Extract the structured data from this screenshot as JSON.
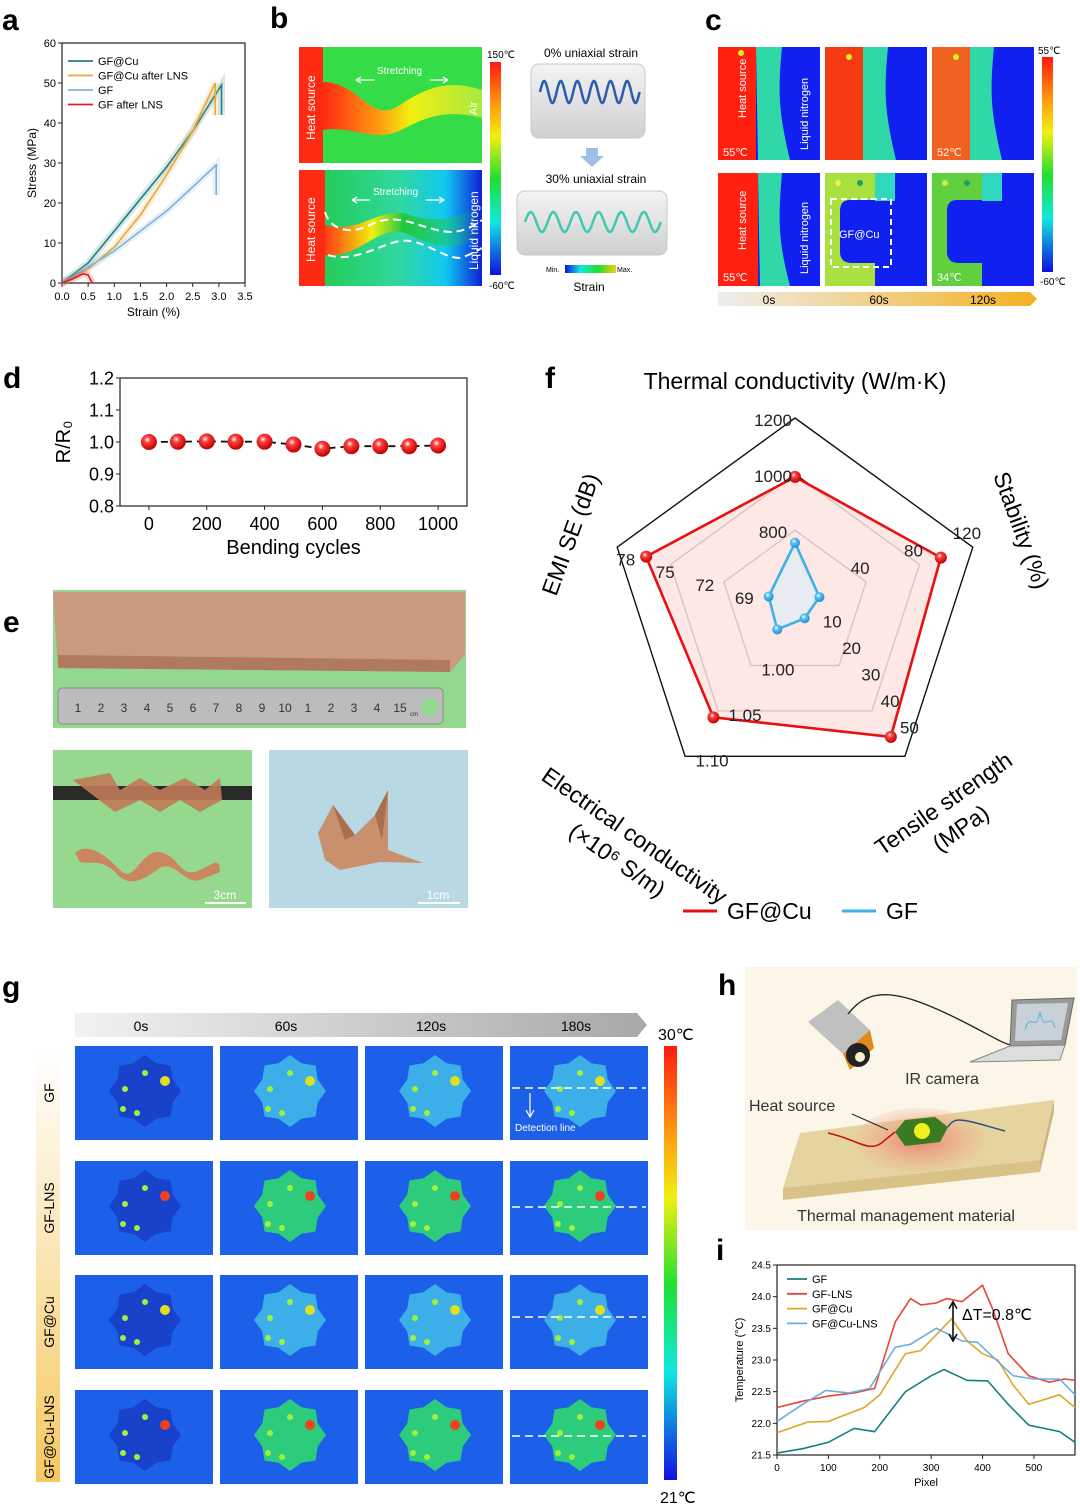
{
  "panel_labels": [
    "a",
    "b",
    "c",
    "d",
    "e",
    "f",
    "g",
    "h",
    "i"
  ],
  "panel_b": {
    "top_heat": "Heat source",
    "top_stretch": "Stretching",
    "top_air": "Air",
    "bottom_heat": "Heat source",
    "bottom_stretch": "Stretching",
    "bottom_ln": "Liquid nitrogen",
    "colorbar_max": "150℃",
    "colorbar_min": "-60℃",
    "strain0": "0% uniaxial strain",
    "strain30": "30% uniaxial strain",
    "strain_min": "Min.",
    "strain_max": "Max.",
    "strain_label": "Strain",
    "colors": {
      "hot": "#ff2a12",
      "mid": "#2ee04a",
      "cold": "#1020e0"
    }
  },
  "panel_c": {
    "heat": "Heat source",
    "ln": "Liquid nitrogen",
    "temp_r1c1": "55℃",
    "temp_r1c3": "52℃",
    "temp_r2c1": "55℃",
    "temp_r2c3": "34℃",
    "material": "GF@Cu",
    "colorbar_max": "55℃",
    "colorbar_min": "-60℃",
    "times": [
      "0s",
      "60s",
      "120s"
    ]
  },
  "panel_e": {
    "ruler_marks": [
      "1",
      "2",
      "3",
      "4",
      "5",
      "6",
      "7",
      "8",
      "9",
      "10",
      "1",
      "2",
      "3",
      "4",
      "15"
    ],
    "ruler_unit": "cm",
    "scale_left": "3cm",
    "scale_right": "1cm"
  },
  "panel_g": {
    "times": [
      "0s",
      "60s",
      "120s",
      "180s"
    ],
    "rows": [
      "GF",
      "GF-LNS",
      "GF@Cu",
      "GF@Cu-LNS"
    ],
    "colorbar_max": "30℃",
    "colorbar_min": "21℃",
    "detection": "Detection line"
  },
  "panel_h": {
    "camera": "IR camera",
    "heat": "Heat source",
    "material": "Thermal management material"
  },
  "chart_data": [
    {
      "panel": "a",
      "type": "line",
      "xlabel": "Strain (%)",
      "ylabel": "Stress (MPa)",
      "xlim": [
        0,
        3.5
      ],
      "ylim": [
        0,
        60
      ],
      "xticks": [
        "0.0",
        "0.5",
        "1.0",
        "1.5",
        "2.0",
        "2.5",
        "3.0",
        "3.5"
      ],
      "yticks": [
        "0",
        "10",
        "20",
        "30",
        "40",
        "50",
        "60"
      ],
      "legend": "top-left",
      "series": [
        {
          "name": "GF@Cu",
          "color": "#1f7f7f",
          "x": [
            0,
            0.5,
            1.0,
            1.5,
            2.0,
            2.5,
            3.05,
            3.05
          ],
          "y": [
            0,
            5,
            13,
            21,
            29,
            38,
            49.5,
            42
          ]
        },
        {
          "name": "GF@Cu after LNS",
          "color": "#e8a93a",
          "x": [
            0,
            0.5,
            1.0,
            1.5,
            2.0,
            2.5,
            2.93,
            2.93
          ],
          "y": [
            0,
            3.5,
            9,
            17,
            27,
            38,
            50,
            42
          ]
        },
        {
          "name": "GF",
          "color": "#7fb3de",
          "x": [
            0,
            0.5,
            1.0,
            1.5,
            2.0,
            2.5,
            2.95,
            2.95
          ],
          "y": [
            0,
            4,
            8,
            13,
            18,
            24,
            29.5,
            22
          ]
        },
        {
          "name": "GF after LNS",
          "color": "#e02020",
          "x": [
            0,
            0.2,
            0.4,
            0.5,
            0.58
          ],
          "y": [
            0,
            1,
            2.3,
            2,
            0
          ]
        }
      ]
    },
    {
      "panel": "d",
      "type": "line",
      "xlabel": "Bending cycles",
      "ylabel": "R/R₀",
      "xlim": [
        -100,
        1100
      ],
      "ylim": [
        0.8,
        1.2
      ],
      "xticks": [
        "0",
        "200",
        "400",
        "600",
        "800",
        "1000"
      ],
      "yticks": [
        "0.8",
        "0.9",
        "1.0",
        "1.1",
        "1.2"
      ],
      "series": [
        {
          "color": "#e81010",
          "x": [
            0,
            100,
            200,
            300,
            400,
            500,
            600,
            700,
            800,
            900,
            1000
          ],
          "y": [
            1.0,
            1.001,
            1.002,
            1.001,
            1.001,
            0.992,
            0.979,
            0.987,
            0.987,
            0.987,
            0.989
          ]
        }
      ]
    },
    {
      "panel": "f",
      "type": "radar",
      "axes": [
        {
          "name": "Thermal conductivity (W/m·K)",
          "range": [
            533,
            1200
          ],
          "ticks": [
            "800",
            "1000",
            "1200"
          ]
        },
        {
          "name": "Stability (%)",
          "range": [
            -13.3,
            120
          ],
          "ticks": [
            "40",
            "80",
            "120"
          ]
        },
        {
          "name": "Tensile strength (MPa)",
          "range": [
            0,
            57
          ],
          "ticks": [
            "10",
            "20",
            "30",
            "40",
            "50"
          ]
        },
        {
          "name": "Electrical conductivity (×10⁶ S/m)",
          "range": [
            0.933,
            1.1
          ],
          "ticks": [
            "1.00",
            "1.05",
            "1.10"
          ]
        },
        {
          "name": "EMI SE (dB)",
          "range": [
            65,
            78.5
          ],
          "ticks": [
            "69",
            "72",
            "75",
            "78"
          ]
        }
      ],
      "series": [
        {
          "name": "GF@Cu",
          "color": "#e81010",
          "fill": "#fde4e2",
          "values": [
            990,
            96,
            49.7,
            1.057,
            76.3
          ]
        },
        {
          "name": "GF",
          "color": "#3fb0ea",
          "fill": "#e3ecf4",
          "values": [
            755,
            5,
            5,
            0.96,
            67
          ]
        }
      ],
      "legend": "bottom"
    },
    {
      "panel": "i",
      "type": "line",
      "xlabel": "Pixel",
      "ylabel": "Temperature (°C)",
      "xlim": [
        0,
        580
      ],
      "ylim": [
        21.5,
        24.5
      ],
      "xticks": [
        "0",
        "100",
        "200",
        "300",
        "400",
        "500"
      ],
      "yticks": [
        "21.5",
        "22.0",
        "22.5",
        "23.0",
        "23.5",
        "24.0",
        "24.5"
      ],
      "legend": "top-left",
      "annotation": "ΔT=0.8℃",
      "series": [
        {
          "name": "GF",
          "color": "#16807f",
          "x": [
            0,
            50,
            100,
            150,
            190,
            250,
            300,
            325,
            370,
            410,
            450,
            490,
            550,
            580
          ],
          "y": [
            21.53,
            21.6,
            21.7,
            21.92,
            21.87,
            22.5,
            22.75,
            22.85,
            22.68,
            22.67,
            22.3,
            21.97,
            21.87,
            21.7
          ]
        },
        {
          "name": "GF-LNS",
          "color": "#e8443a",
          "x": [
            0,
            50,
            100,
            150,
            190,
            230,
            260,
            280,
            310,
            330,
            360,
            380,
            400,
            420,
            450,
            490,
            530,
            560,
            580
          ],
          "y": [
            22.25,
            22.35,
            22.43,
            22.48,
            22.55,
            23.6,
            23.97,
            23.87,
            23.9,
            23.97,
            23.92,
            24.05,
            24.18,
            23.8,
            23.1,
            22.75,
            22.65,
            22.7,
            22.68
          ]
        },
        {
          "name": "GF@Cu",
          "color": "#e0a52a",
          "x": [
            0,
            60,
            100,
            170,
            200,
            250,
            280,
            310,
            340,
            370,
            400,
            430,
            460,
            490,
            550,
            580
          ],
          "y": [
            21.85,
            22.02,
            22.03,
            22.25,
            22.45,
            23.1,
            23.15,
            23.4,
            23.65,
            23.3,
            23.1,
            23.0,
            22.6,
            22.3,
            22.45,
            22.25
          ]
        },
        {
          "name": "GF@Cu-LNS",
          "color": "#6aaee0",
          "x": [
            0,
            50,
            95,
            140,
            180,
            230,
            260,
            310,
            360,
            390,
            420,
            460,
            500,
            550,
            580
          ],
          "y": [
            22.03,
            22.3,
            22.52,
            22.48,
            22.55,
            23.2,
            23.25,
            23.5,
            23.3,
            23.28,
            23.05,
            22.75,
            22.7,
            22.7,
            22.45
          ]
        }
      ]
    }
  ]
}
